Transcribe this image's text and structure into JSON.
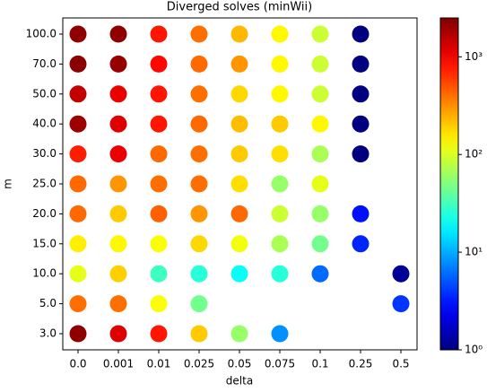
{
  "chart_data": {
    "type": "scatter",
    "title": "Diverged solves (minWii)",
    "xlabel": "delta",
    "ylabel": "m",
    "xcategories": [
      "0.0",
      "0.001",
      "0.01",
      "0.025",
      "0.05",
      "0.075",
      "0.1",
      "0.25",
      "0.5"
    ],
    "ycategories": [
      "3.0",
      "5.0",
      "10.0",
      "15.0",
      "20.0",
      "25.0",
      "30.0",
      "40.0",
      "50.0",
      "70.0",
      "100.0"
    ],
    "x": [
      "0.0",
      "0.001",
      "0.01",
      "0.025",
      "0.05",
      "0.075",
      "0.1",
      "0.25",
      "0.0",
      "0.001",
      "0.01",
      "0.025",
      "0.05",
      "0.075",
      "0.1",
      "0.25",
      "0.0",
      "0.001",
      "0.01",
      "0.025",
      "0.05",
      "0.075",
      "0.1",
      "0.25",
      "0.0",
      "0.001",
      "0.01",
      "0.025",
      "0.05",
      "0.075",
      "0.1",
      "0.25",
      "0.0",
      "0.001",
      "0.01",
      "0.025",
      "0.05",
      "0.075",
      "0.1",
      "0.25",
      "0.0",
      "0.001",
      "0.01",
      "0.025",
      "0.05",
      "0.075",
      "0.1",
      "0.0",
      "0.001",
      "0.01",
      "0.025",
      "0.05",
      "0.075",
      "0.1",
      "0.25",
      "0.0",
      "0.001",
      "0.01",
      "0.025",
      "0.05",
      "0.075",
      "0.1",
      "0.25",
      "0.0",
      "0.001",
      "0.01",
      "0.025",
      "0.05",
      "0.075",
      "0.1",
      "0.5",
      "0.0",
      "0.001",
      "0.01",
      "0.025",
      "0.5",
      "0.0",
      "0.001",
      "0.01",
      "0.025",
      "0.05",
      "0.075"
    ],
    "y": [
      "100.0",
      "100.0",
      "100.0",
      "100.0",
      "100.0",
      "100.0",
      "100.0",
      "100.0",
      "70.0",
      "70.0",
      "70.0",
      "70.0",
      "70.0",
      "70.0",
      "70.0",
      "70.0",
      "50.0",
      "50.0",
      "50.0",
      "50.0",
      "50.0",
      "50.0",
      "50.0",
      "50.0",
      "40.0",
      "40.0",
      "40.0",
      "40.0",
      "40.0",
      "40.0",
      "40.0",
      "40.0",
      "30.0",
      "30.0",
      "30.0",
      "30.0",
      "30.0",
      "30.0",
      "30.0",
      "30.0",
      "25.0",
      "25.0",
      "25.0",
      "25.0",
      "25.0",
      "25.0",
      "25.0",
      "20.0",
      "20.0",
      "20.0",
      "20.0",
      "20.0",
      "20.0",
      "20.0",
      "20.0",
      "15.0",
      "15.0",
      "15.0",
      "15.0",
      "15.0",
      "15.0",
      "15.0",
      "15.0",
      "10.0",
      "10.0",
      "10.0",
      "10.0",
      "10.0",
      "10.0",
      "10.0",
      "10.0",
      "5.0",
      "5.0",
      "5.0",
      "5.0",
      "5.0",
      "3.0",
      "3.0",
      "3.0",
      "3.0",
      "3.0",
      "3.0"
    ],
    "values": [
      2200,
      2200,
      800,
      400,
      230,
      140,
      90,
      1,
      2300,
      2100,
      900,
      420,
      300,
      140,
      90,
      1,
      1500,
      1100,
      800,
      400,
      180,
      140,
      90,
      1,
      2000,
      1200,
      800,
      420,
      220,
      200,
      140,
      1,
      750,
      1100,
      420,
      400,
      200,
      170,
      70,
      1,
      420,
      300,
      400,
      400,
      170,
      60,
      110,
      420,
      200,
      450,
      300,
      420,
      90,
      60,
      3,
      150,
      140,
      130,
      180,
      120,
      70,
      45,
      3.5,
      110,
      190,
      30,
      25,
      20,
      25,
      6,
      1.2,
      400,
      400,
      130,
      45,
      4,
      2200,
      1200,
      800,
      200,
      60,
      8
    ],
    "colormap": "jet",
    "color_scale": "log",
    "clim": [
      1,
      2500
    ],
    "cticks": [
      {
        "value": 1,
        "label": "10⁰"
      },
      {
        "value": 10,
        "label": "10¹"
      },
      {
        "value": 100,
        "label": "10²"
      },
      {
        "value": 1000,
        "label": "10³"
      }
    ]
  }
}
